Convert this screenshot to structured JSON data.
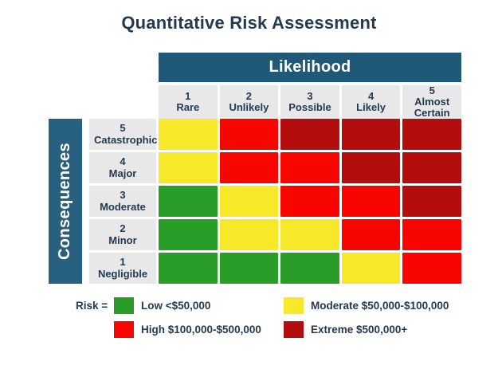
{
  "title": "Quantitative Risk Assessment",
  "axes": {
    "x_label": "Likelihood",
    "y_label": "Consequences"
  },
  "legend": {
    "prefix": "Risk =",
    "items": [
      {
        "level": "low",
        "label": "Low <$50,000",
        "color": "#2a9c28"
      },
      {
        "level": "moderate",
        "label": "Moderate $50,000-$100,000",
        "color": "#f7e829"
      },
      {
        "level": "high",
        "label": "High $100,000-$500,000",
        "color": "#f90500"
      },
      {
        "level": "extreme",
        "label": "Extreme $500,000+",
        "color": "#b30d0d"
      }
    ]
  },
  "chart_data": {
    "type": "heatmap",
    "title": "Quantitative Risk Assessment",
    "xlabel": "Likelihood",
    "ylabel": "Consequences",
    "columns": [
      {
        "value": 1,
        "name": "Rare"
      },
      {
        "value": 2,
        "name": "Unlikely"
      },
      {
        "value": 3,
        "name": "Possible"
      },
      {
        "value": 4,
        "name": "Likely"
      },
      {
        "value": 5,
        "name": "Almost Certain"
      }
    ],
    "rows": [
      {
        "value": 5,
        "name": "Catastrophic",
        "cells": [
          "moderate",
          "high",
          "extreme",
          "extreme",
          "extreme"
        ]
      },
      {
        "value": 4,
        "name": "Major",
        "cells": [
          "moderate",
          "high",
          "high",
          "extreme",
          "extreme"
        ]
      },
      {
        "value": 3,
        "name": "Moderate",
        "cells": [
          "low",
          "moderate",
          "high",
          "high",
          "extreme"
        ]
      },
      {
        "value": 2,
        "name": "Minor",
        "cells": [
          "low",
          "moderate",
          "moderate",
          "high",
          "high"
        ]
      },
      {
        "value": 1,
        "name": "Negligible",
        "cells": [
          "low",
          "low",
          "low",
          "moderate",
          "high"
        ]
      }
    ],
    "risk_levels": {
      "low": {
        "label": "Low <$50,000",
        "color": "#2a9c28"
      },
      "moderate": {
        "label": "Moderate $50,000-$100,000",
        "color": "#f7e829"
      },
      "high": {
        "label": "High $100,000-$500,000",
        "color": "#f90500"
      },
      "extreme": {
        "label": "Extreme $500,000+",
        "color": "#b30d0d"
      }
    },
    "layout": {
      "legend_position": "bottom",
      "grid": false,
      "header_bar_color": "#1f5977",
      "header_cell_bg": "#e8e8e8",
      "text_color": "#223a54"
    }
  }
}
